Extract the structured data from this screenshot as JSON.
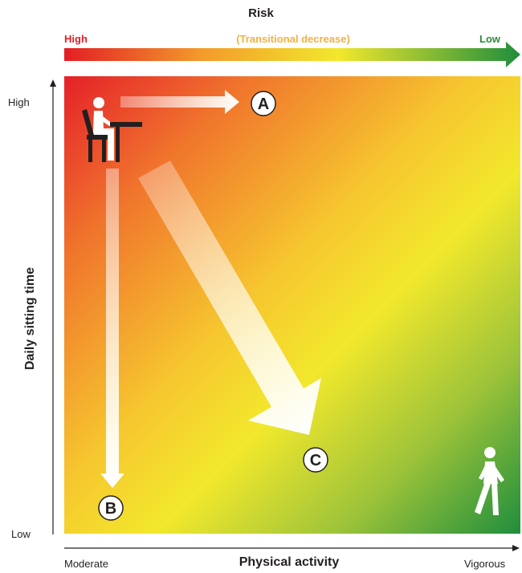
{
  "risk": {
    "title": "Risk",
    "high": "High",
    "middle": "(Transitional decrease)",
    "low": "Low",
    "colors": {
      "high": "#e31e24",
      "middle": "#f2e82c",
      "low": "#1f8e3c"
    }
  },
  "y_axis": {
    "title": "Daily sitting time",
    "high": "High",
    "low": "Low"
  },
  "x_axis": {
    "title": "Physical activity",
    "left": "Moderate",
    "right": "Vigorous"
  },
  "markers": {
    "a": "A",
    "b": "B",
    "c": "C"
  },
  "icons": {
    "start": "seated-person-at-desk-icon",
    "end": "walking-person-icon"
  }
}
